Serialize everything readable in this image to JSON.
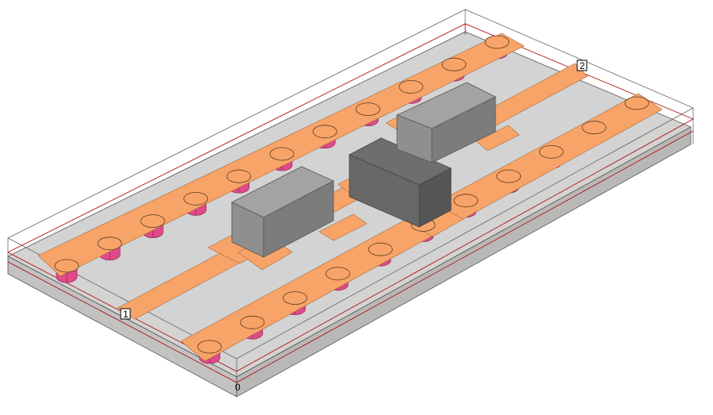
{
  "scene": {
    "description_free": true,
    "ports": [
      {
        "id": "port-1",
        "label": "1"
      },
      {
        "id": "port-2",
        "label": "2"
      }
    ],
    "origin_label": "0",
    "colors": {
      "background": "#ffffff",
      "substrate_top": "#d3d3d3",
      "substrate_front": "#c0c0c0",
      "substrate_side": "#b5b5b5",
      "copper": "#f8a468",
      "copper_edge": "#a66a3c",
      "via": "#e04a8a",
      "via_edge": "#8a1b4a",
      "box_edge": "#8a0000",
      "component_top": "#a3a3a3",
      "component_front": "#8c8c8c",
      "component_side": "#6f6f6f",
      "component_dark_top": "#6e6e6e",
      "component_dark_front": "#606060",
      "component_dark_side": "#4f4f4f"
    }
  }
}
